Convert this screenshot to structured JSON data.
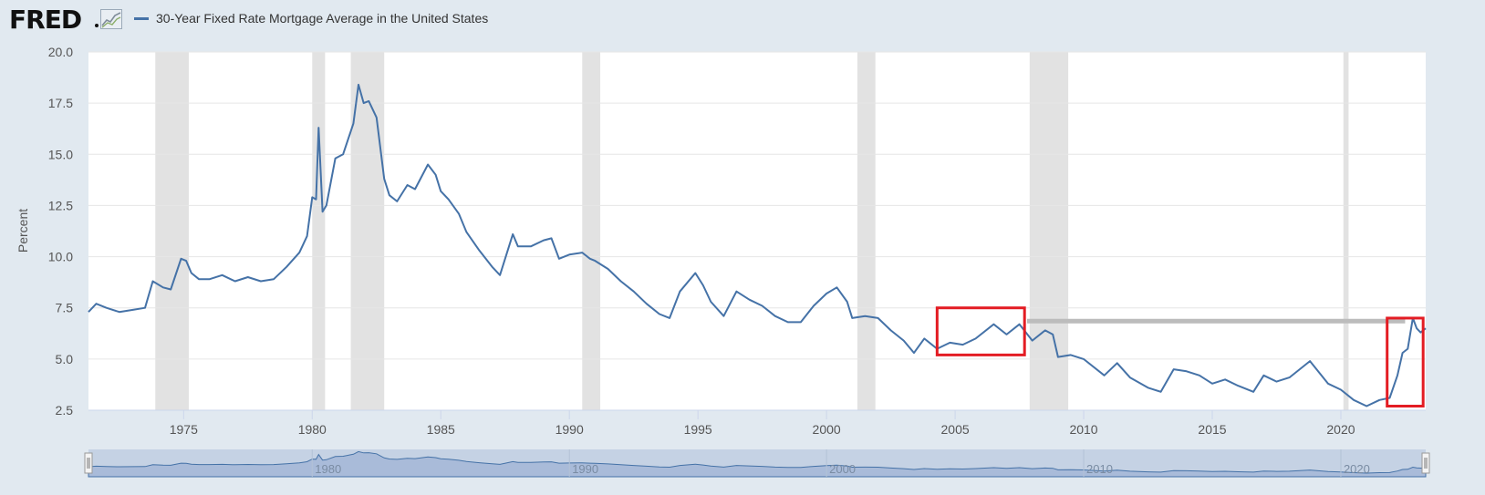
{
  "header": {
    "logo_text": "FRED",
    "series_title": "30-Year Fixed Rate Mortgage Average in the United States"
  },
  "colors": {
    "line": "#4572a7",
    "recession": "#e2e2e2",
    "highlight": "#e31c23",
    "reference_line": "#bcbcbc",
    "navigator_fill": "#a9bbd9"
  },
  "chart_data": {
    "type": "line",
    "ylabel": "Percent",
    "xlim": [
      1971.3,
      2023.3
    ],
    "ylim": [
      2.5,
      20.0
    ],
    "y_ticks": [
      "2.5",
      "5.0",
      "7.5",
      "10.0",
      "12.5",
      "15.0",
      "17.5",
      "20.0"
    ],
    "x_ticks": [
      "1975",
      "1980",
      "1985",
      "1990",
      "1995",
      "2000",
      "2005",
      "2010",
      "2015",
      "2020"
    ],
    "navigator_ticks": [
      "1980",
      "1990",
      "2000",
      "2010",
      "2020"
    ],
    "recessions": [
      [
        1973.9,
        1975.2
      ],
      [
        1980.0,
        1980.5
      ],
      [
        1981.5,
        1982.8
      ],
      [
        1990.5,
        1991.2
      ],
      [
        2001.2,
        2001.9
      ],
      [
        2007.9,
        2009.4
      ],
      [
        2020.1,
        2020.3
      ]
    ],
    "reference_line": {
      "x0": 2007.8,
      "x1": 2022.5,
      "y": 6.85
    },
    "highlight_boxes": [
      {
        "x0": 2004.3,
        "x1": 2007.7,
        "y0": 5.2,
        "y1": 7.5
      },
      {
        "x0": 2021.8,
        "x1": 2023.2,
        "y0": 2.7,
        "y1": 7.0
      }
    ],
    "series": [
      {
        "name": "30-Year Fixed Rate Mortgage Average in the United States",
        "points": [
          [
            1971.3,
            7.3
          ],
          [
            1971.6,
            7.7
          ],
          [
            1972.0,
            7.5
          ],
          [
            1972.5,
            7.3
          ],
          [
            1973.0,
            7.4
          ],
          [
            1973.5,
            7.5
          ],
          [
            1973.8,
            8.8
          ],
          [
            1974.2,
            8.5
          ],
          [
            1974.5,
            8.4
          ],
          [
            1974.9,
            9.9
          ],
          [
            1975.1,
            9.8
          ],
          [
            1975.3,
            9.2
          ],
          [
            1975.6,
            8.9
          ],
          [
            1976.0,
            8.9
          ],
          [
            1976.5,
            9.1
          ],
          [
            1977.0,
            8.8
          ],
          [
            1977.5,
            9.0
          ],
          [
            1978.0,
            8.8
          ],
          [
            1978.5,
            8.9
          ],
          [
            1979.0,
            9.5
          ],
          [
            1979.5,
            10.2
          ],
          [
            1979.8,
            11.0
          ],
          [
            1980.0,
            12.9
          ],
          [
            1980.15,
            12.8
          ],
          [
            1980.25,
            16.3
          ],
          [
            1980.4,
            12.2
          ],
          [
            1980.55,
            12.5
          ],
          [
            1980.9,
            14.8
          ],
          [
            1981.2,
            15.0
          ],
          [
            1981.6,
            16.5
          ],
          [
            1981.8,
            18.4
          ],
          [
            1982.0,
            17.5
          ],
          [
            1982.2,
            17.6
          ],
          [
            1982.5,
            16.8
          ],
          [
            1982.8,
            13.8
          ],
          [
            1983.0,
            13.0
          ],
          [
            1983.3,
            12.7
          ],
          [
            1983.7,
            13.5
          ],
          [
            1984.0,
            13.3
          ],
          [
            1984.5,
            14.5
          ],
          [
            1984.8,
            14.0
          ],
          [
            1985.0,
            13.2
          ],
          [
            1985.3,
            12.8
          ],
          [
            1985.7,
            12.1
          ],
          [
            1986.0,
            11.2
          ],
          [
            1986.5,
            10.3
          ],
          [
            1987.0,
            9.5
          ],
          [
            1987.3,
            9.1
          ],
          [
            1987.8,
            11.1
          ],
          [
            1988.0,
            10.5
          ],
          [
            1988.5,
            10.5
          ],
          [
            1989.0,
            10.8
          ],
          [
            1989.3,
            10.9
          ],
          [
            1989.6,
            9.9
          ],
          [
            1990.0,
            10.1
          ],
          [
            1990.5,
            10.2
          ],
          [
            1990.8,
            9.9
          ],
          [
            1991.0,
            9.8
          ],
          [
            1991.5,
            9.4
          ],
          [
            1992.0,
            8.8
          ],
          [
            1992.5,
            8.3
          ],
          [
            1993.0,
            7.7
          ],
          [
            1993.5,
            7.2
          ],
          [
            1993.9,
            7.0
          ],
          [
            1994.3,
            8.3
          ],
          [
            1994.9,
            9.2
          ],
          [
            1995.2,
            8.6
          ],
          [
            1995.5,
            7.8
          ],
          [
            1996.0,
            7.1
          ],
          [
            1996.5,
            8.3
          ],
          [
            1997.0,
            7.9
          ],
          [
            1997.5,
            7.6
          ],
          [
            1998.0,
            7.1
          ],
          [
            1998.5,
            6.8
          ],
          [
            1999.0,
            6.8
          ],
          [
            1999.5,
            7.6
          ],
          [
            2000.0,
            8.2
          ],
          [
            2000.4,
            8.5
          ],
          [
            2000.8,
            7.8
          ],
          [
            2001.0,
            7.0
          ],
          [
            2001.5,
            7.1
          ],
          [
            2002.0,
            7.0
          ],
          [
            2002.5,
            6.4
          ],
          [
            2003.0,
            5.9
          ],
          [
            2003.4,
            5.3
          ],
          [
            2003.8,
            6.0
          ],
          [
            2004.3,
            5.5
          ],
          [
            2004.8,
            5.8
          ],
          [
            2005.3,
            5.7
          ],
          [
            2005.8,
            6.0
          ],
          [
            2006.5,
            6.7
          ],
          [
            2007.0,
            6.2
          ],
          [
            2007.5,
            6.7
          ],
          [
            2008.0,
            5.9
          ],
          [
            2008.5,
            6.4
          ],
          [
            2008.8,
            6.2
          ],
          [
            2009.0,
            5.1
          ],
          [
            2009.5,
            5.2
          ],
          [
            2010.0,
            5.0
          ],
          [
            2010.8,
            4.2
          ],
          [
            2011.3,
            4.8
          ],
          [
            2011.8,
            4.1
          ],
          [
            2012.5,
            3.6
          ],
          [
            2013.0,
            3.4
          ],
          [
            2013.5,
            4.5
          ],
          [
            2014.0,
            4.4
          ],
          [
            2014.5,
            4.2
          ],
          [
            2015.0,
            3.8
          ],
          [
            2015.5,
            4.0
          ],
          [
            2016.0,
            3.7
          ],
          [
            2016.6,
            3.4
          ],
          [
            2017.0,
            4.2
          ],
          [
            2017.5,
            3.9
          ],
          [
            2018.0,
            4.1
          ],
          [
            2018.8,
            4.9
          ],
          [
            2019.5,
            3.8
          ],
          [
            2020.0,
            3.5
          ],
          [
            2020.5,
            3.0
          ],
          [
            2021.0,
            2.7
          ],
          [
            2021.5,
            3.0
          ],
          [
            2021.9,
            3.1
          ],
          [
            2022.2,
            4.2
          ],
          [
            2022.4,
            5.3
          ],
          [
            2022.6,
            5.5
          ],
          [
            2022.8,
            7.0
          ],
          [
            2022.95,
            6.5
          ],
          [
            2023.1,
            6.3
          ],
          [
            2023.3,
            6.5
          ]
        ]
      }
    ]
  }
}
